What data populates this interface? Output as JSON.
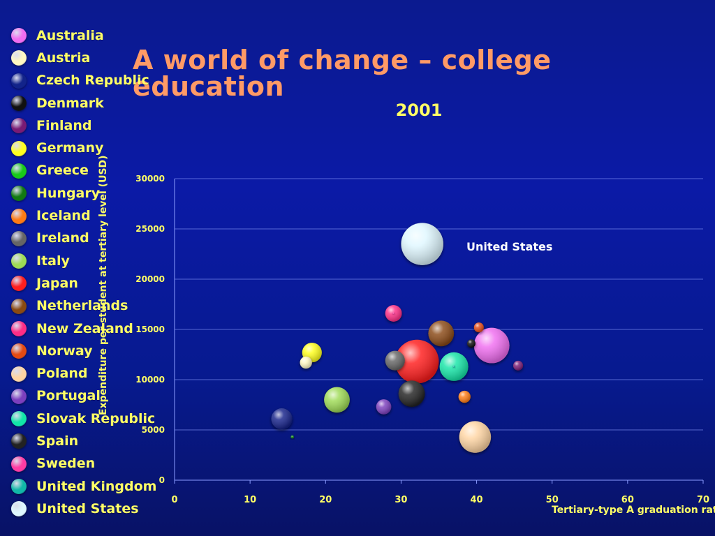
{
  "chart_data": {
    "type": "scatter",
    "title": "A world of change – college education",
    "subtitle": "2001",
    "xlabel": "Tertiary-type A graduation rate",
    "ylabel": "Expenditure per student at tertiary level (USD)",
    "xlim": [
      0,
      70
    ],
    "ylim": [
      0,
      30000
    ],
    "x_ticks": [
      0,
      10,
      20,
      30,
      40,
      50,
      60,
      70
    ],
    "y_ticks": [
      0,
      5000,
      10000,
      15000,
      20000,
      25000,
      30000
    ],
    "grid": "horizontal",
    "legend": "left",
    "annotations": [
      {
        "text": "United States",
        "x": 41.5,
        "y": 23500
      }
    ],
    "series": [
      {
        "name": "Australia",
        "x": 42.0,
        "y": 13400,
        "size": 4.7,
        "color": "#f06df0"
      },
      {
        "name": "Austria",
        "x": 17.4,
        "y": 11700,
        "size": 1.6,
        "color": "#fff7c2"
      },
      {
        "name": "Czech Republic",
        "x": 14.2,
        "y": 6100,
        "size": 2.8,
        "color": "#12238a"
      },
      {
        "name": "Denmark",
        "x": 39.3,
        "y": 13600,
        "size": 1.1,
        "color": "#111111"
      },
      {
        "name": "Finland",
        "x": 45.5,
        "y": 11400,
        "size": 1.3,
        "color": "#7a1b74"
      },
      {
        "name": "Germany",
        "x": 18.2,
        "y": 12700,
        "size": 2.6,
        "color": "#ffff1f"
      },
      {
        "name": "Greece",
        "x": 15.6,
        "y": 4300,
        "size": 0.4,
        "color": "#19c919"
      },
      {
        "name": "Hungary",
        "x": 15.6,
        "y": 4300,
        "size": 0.3,
        "color": "#127a12"
      },
      {
        "name": "Iceland",
        "x": 38.4,
        "y": 8300,
        "size": 1.6,
        "color": "#ff7b15"
      },
      {
        "name": "Ireland",
        "x": 29.2,
        "y": 11900,
        "size": 2.6,
        "color": "#666666"
      },
      {
        "name": "Italy",
        "x": 21.5,
        "y": 8000,
        "size": 3.4,
        "color": "#9edb54"
      },
      {
        "name": "Japan",
        "x": 32.1,
        "y": 11800,
        "size": 5.8,
        "color": "#ff1f1f"
      },
      {
        "name": "Netherlands",
        "x": 35.3,
        "y": 14600,
        "size": 3.4,
        "color": "#8a4a12"
      },
      {
        "name": "New Zealand",
        "x": 29.0,
        "y": 16600,
        "size": 2.2,
        "color": "#ff2d86"
      },
      {
        "name": "Norway",
        "x": 40.3,
        "y": 15200,
        "size": 1.3,
        "color": "#e34a12"
      },
      {
        "name": "Poland",
        "x": 39.8,
        "y": 4300,
        "size": 4.2,
        "color": "#ffd5a3"
      },
      {
        "name": "Portugal",
        "x": 27.7,
        "y": 7300,
        "size": 2.0,
        "color": "#7d3fbe"
      },
      {
        "name": "Slovak Republic",
        "x": 37.0,
        "y": 11300,
        "size": 3.8,
        "color": "#12e6a8"
      },
      {
        "name": "Spain",
        "x": 31.4,
        "y": 8600,
        "size": 3.5,
        "color": "#222222"
      },
      {
        "name": "Sweden",
        "x": 29.0,
        "y": 16600,
        "size": 0.1,
        "color": "#ff3ca3"
      },
      {
        "name": "United Kingdom",
        "x": 37.0,
        "y": 11300,
        "size": 0.1,
        "color": "#12b8a8"
      },
      {
        "name": "United States",
        "x": 32.8,
        "y": 23500,
        "size": 5.6,
        "color": "#dff7ff"
      }
    ]
  },
  "page": {
    "title": "A world of change – college education",
    "subtitle": "2001",
    "xlabel": "Tertiary-type A graduation rate",
    "ylabel": "Expenditure per student at tertiary level (USD)",
    "annotation": "United States"
  }
}
